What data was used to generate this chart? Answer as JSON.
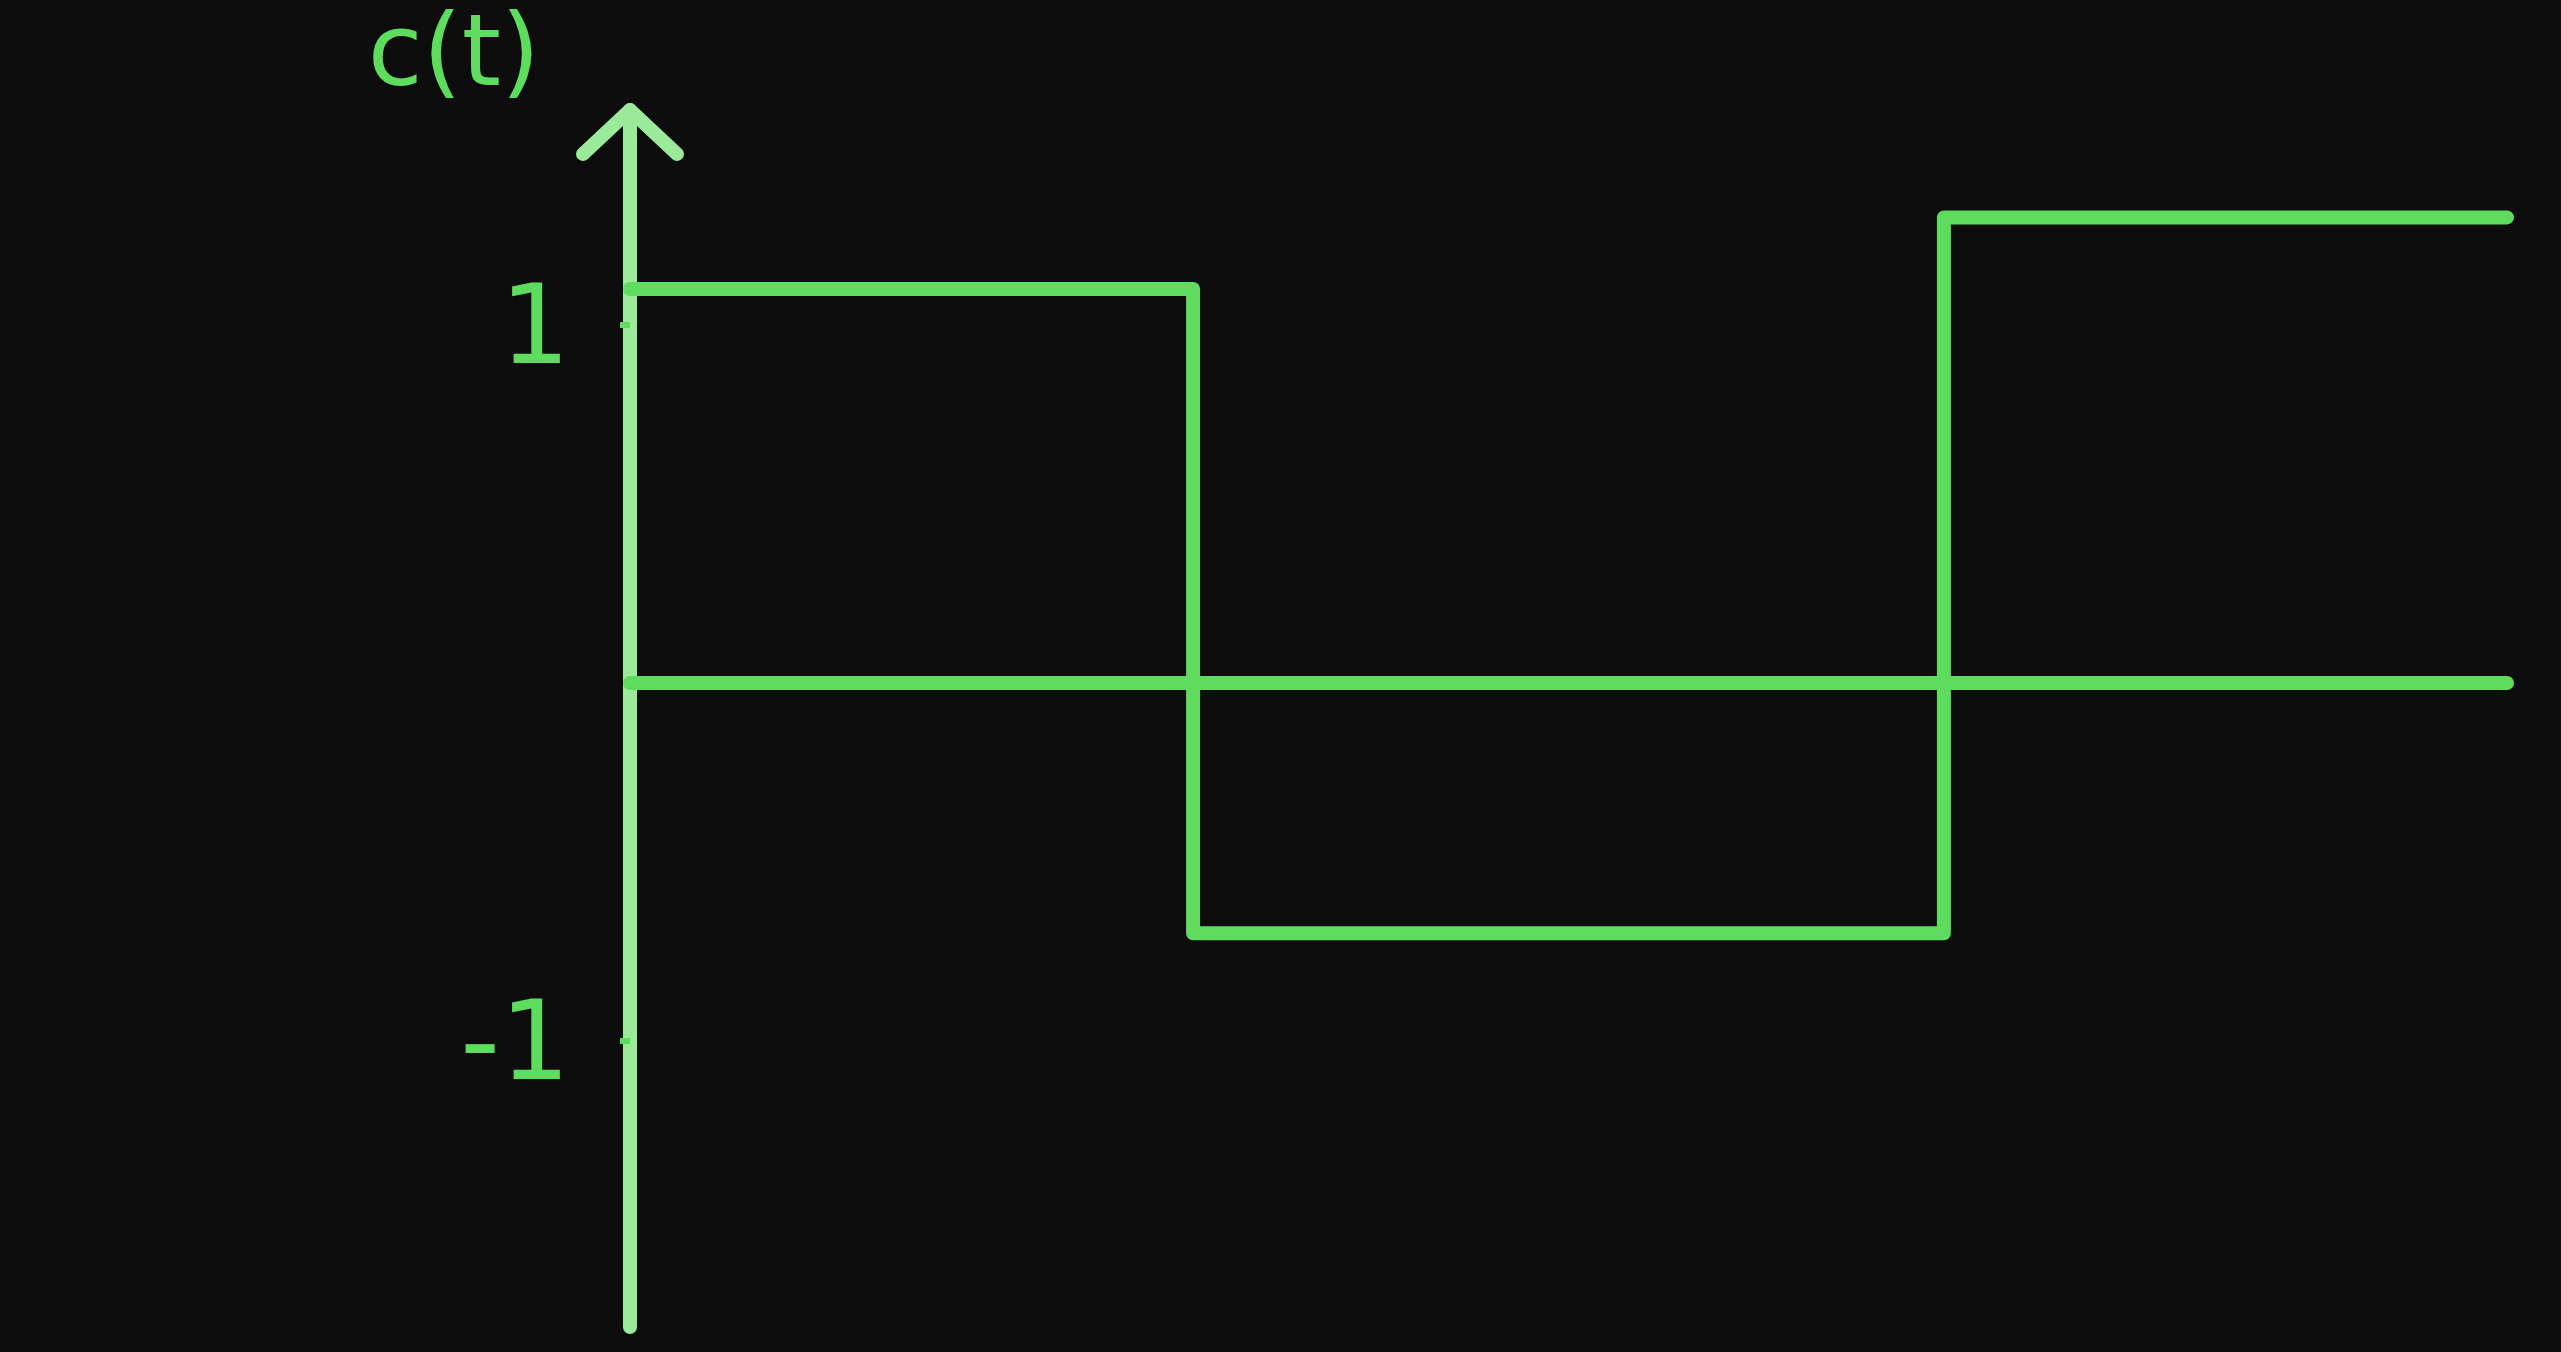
{
  "chart_data": {
    "type": "step",
    "ylabel": "c(t)",
    "categories": [
      null,
      null,
      null,
      null,
      null,
      null
    ],
    "values": [
      1.1,
      1.1,
      -0.7,
      -0.7,
      1.3,
      1.3
    ],
    "color": "#5ddc5d",
    "ylim": [
      -1.8,
      1.6
    ],
    "yticks": [
      1,
      -1
    ],
    "tick_labels": "y",
    "ref_lines": [
      {
        "axis": "y",
        "value": 0
      }
    ]
  }
}
